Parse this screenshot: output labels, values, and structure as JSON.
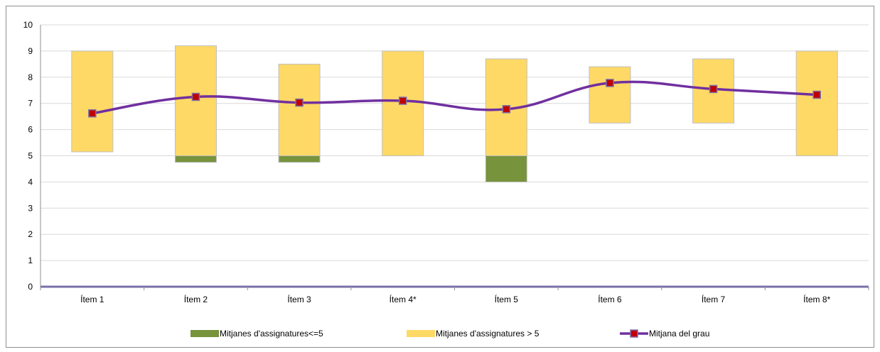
{
  "chart_data": {
    "type": "bar",
    "categories": [
      "Ítem 1",
      "Ítem 2",
      "Ítem 3",
      "Ítem 4*",
      "Ítem 5",
      "Ítem 6",
      "Ítem 7",
      "Ítem 8*"
    ],
    "ylim": [
      0,
      10
    ],
    "yticks": [
      0,
      1,
      2,
      3,
      4,
      5,
      6,
      7,
      8,
      9,
      10
    ],
    "grid": true,
    "legend_position": "bottom",
    "series": [
      {
        "name": "Mitjanes d'assignatures<=5",
        "kind": "floating-bar",
        "color": "#77933c",
        "low": [
          null,
          4.75,
          4.75,
          null,
          4.0,
          null,
          null,
          null
        ],
        "high": [
          null,
          5.0,
          5.0,
          null,
          5.0,
          null,
          null,
          null
        ]
      },
      {
        "name": "Mitjanes d'assignatures > 5",
        "kind": "floating-bar",
        "color": "#ffd966",
        "low": [
          5.15,
          5.0,
          5.0,
          5.0,
          5.0,
          6.25,
          6.25,
          5.0
        ],
        "high": [
          9.0,
          9.2,
          8.5,
          9.0,
          8.7,
          8.4,
          8.7,
          9.0
        ]
      },
      {
        "name": "Mitjana del grau",
        "kind": "line",
        "color": "#7030a0",
        "marker_color": "#c00000",
        "values": [
          6.62,
          7.25,
          7.03,
          7.1,
          6.78,
          7.78,
          7.55,
          7.33
        ]
      }
    ]
  }
}
